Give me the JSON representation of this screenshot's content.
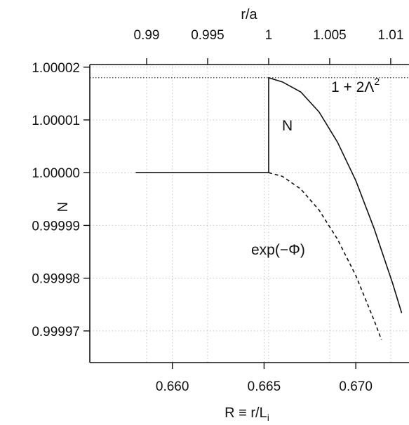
{
  "chart_data": {
    "type": "line",
    "ylabel": "N",
    "xlabel_main": "R ≡ r/L",
    "xlabel_sub": "i",
    "xlabel_top": "r/a",
    "xlim": [
      0.6555,
      0.6729
    ],
    "ylim": [
      0.999964,
      1.0000205
    ],
    "x_ticks": [
      {
        "value": 0.66,
        "label": "0.660"
      },
      {
        "value": 0.665,
        "label": "0.665"
      },
      {
        "value": 0.67,
        "label": "0.670"
      }
    ],
    "y_ticks": [
      {
        "value": 1.00002,
        "label": "1.00002"
      },
      {
        "value": 1.00001,
        "label": "1.00001"
      },
      {
        "value": 1.0,
        "label": "1.00000"
      },
      {
        "value": 0.99999,
        "label": "0.99999"
      },
      {
        "value": 0.99998,
        "label": "0.99998"
      },
      {
        "value": 0.99997,
        "label": "0.99997"
      }
    ],
    "top_ticks": [
      {
        "value": 0.99,
        "label": "0.99"
      },
      {
        "value": 0.995,
        "label": "0.995"
      },
      {
        "value": 1.0,
        "label": "1"
      },
      {
        "value": 1.005,
        "label": "1.005"
      },
      {
        "value": 1.01,
        "label": "1.01"
      }
    ],
    "top_axis_scale": 0.66525,
    "grid": true,
    "reference_line": {
      "y": 1.000018,
      "label": "1 + 2Λ",
      "label_sup": "2",
      "style": "dotted"
    },
    "series": [
      {
        "name": "N",
        "style": "solid",
        "x": [
          0.658,
          0.66525,
          0.66525,
          0.666,
          0.667,
          0.668,
          0.669,
          0.67,
          0.671,
          0.672,
          0.6725
        ],
        "y": [
          1.0,
          1.0,
          1.000018,
          1.0000172,
          1.0000153,
          1.0000115,
          1.0000058,
          0.9999985,
          0.9999894,
          0.9999791,
          0.9999734
        ]
      },
      {
        "name": "exp(−Φ)",
        "style": "dashed",
        "x": [
          0.66525,
          0.666,
          0.667,
          0.668,
          0.669,
          0.67,
          0.671,
          0.6714
        ],
        "y": [
          1.0,
          0.9999993,
          0.9999969,
          0.9999929,
          0.9999874,
          0.9999805,
          0.999972,
          0.9999683
        ]
      }
    ]
  }
}
